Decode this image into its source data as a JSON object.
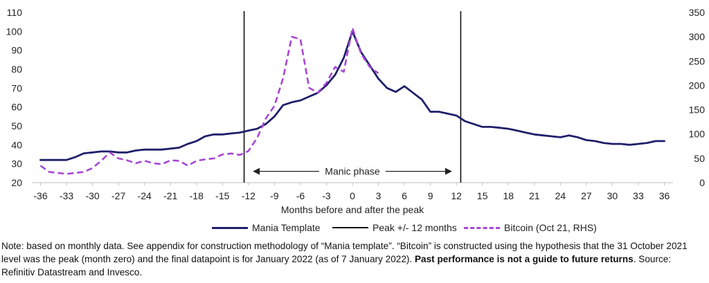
{
  "chart_data": {
    "type": "line",
    "xlabel": "Months before and after the peak",
    "x_ticks": [
      -36,
      -33,
      -30,
      -27,
      -24,
      -21,
      -18,
      -15,
      -12,
      -9,
      -6,
      -3,
      0,
      3,
      6,
      9,
      12,
      15,
      18,
      21,
      24,
      27,
      30,
      33,
      36
    ],
    "xlim": [
      -37,
      37
    ],
    "y_left": {
      "ticks": [
        20,
        30,
        40,
        50,
        60,
        70,
        80,
        90,
        100,
        110
      ],
      "lim": [
        20,
        110
      ]
    },
    "y_right": {
      "ticks": [
        0,
        50,
        100,
        150,
        200,
        250,
        300,
        350
      ],
      "lim": [
        0,
        350
      ]
    },
    "vertical_lines": [
      -12.5,
      12.5
    ],
    "annotation": {
      "text": "Manic phase",
      "from": -11.5,
      "to": 11.5,
      "y": 26
    },
    "series": [
      {
        "name": "Mania Template",
        "axis": "left",
        "color": "#1f1f6b",
        "style": "solid",
        "x": [
          -36,
          -35,
          -34,
          -33,
          -32,
          -31,
          -30,
          -29,
          -28,
          -27,
          -26,
          -25,
          -24,
          -23,
          -22,
          -21,
          -20,
          -19,
          -18,
          -17,
          -16,
          -15,
          -14,
          -13,
          -12,
          -11,
          -10,
          -9,
          -8,
          -7,
          -6,
          -5,
          -4,
          -3,
          -2,
          -1,
          0,
          1,
          2,
          3,
          4,
          5,
          6,
          7,
          8,
          9,
          10,
          11,
          12,
          13,
          14,
          15,
          16,
          17,
          18,
          19,
          20,
          21,
          22,
          23,
          24,
          25,
          26,
          27,
          28,
          29,
          30,
          31,
          32,
          33,
          34,
          35,
          36
        ],
        "values": [
          32,
          32,
          32,
          32,
          33.5,
          35.5,
          36,
          36.5,
          36.5,
          36,
          36,
          37,
          37.5,
          37.5,
          37.5,
          38,
          38.5,
          40.5,
          42,
          44.5,
          45.5,
          45.5,
          46,
          46.5,
          47.5,
          48.5,
          51,
          55,
          61,
          62.5,
          63.5,
          65.5,
          67.5,
          71.5,
          77,
          86,
          100,
          89,
          82,
          75,
          70,
          68,
          71,
          67.5,
          64,
          57.5,
          57.5,
          56.5,
          55.5,
          52.5,
          51,
          49.5,
          49.5,
          49,
          48.5,
          47.5,
          46.5,
          45.5,
          45,
          44.5,
          44,
          45,
          44,
          42.5,
          42,
          41,
          40.5,
          40.5,
          40,
          40.5,
          41,
          42,
          42
        ]
      },
      {
        "name": "Bitcoin (Oct 21, RHS)",
        "axis": "right",
        "color": "#a646d6",
        "style": "dashed",
        "x": [
          -36,
          -35,
          -34,
          -33,
          -32,
          -31,
          -30,
          -29,
          -28,
          -27,
          -26,
          -25,
          -24,
          -23,
          -22,
          -21,
          -20,
          -19,
          -18,
          -17,
          -16,
          -15,
          -14,
          -13,
          -12,
          -11,
          -10,
          -9,
          -8,
          -7,
          -6,
          -5,
          -4,
          -3,
          -2,
          -1,
          0,
          1,
          2,
          3
        ],
        "values": [
          35,
          22,
          20,
          18,
          20,
          22,
          30,
          45,
          62,
          50,
          46,
          40,
          45,
          40,
          38,
          46,
          45,
          35,
          45,
          48,
          50,
          58,
          60,
          57,
          65,
          92,
          132,
          158,
          215,
          300,
          295,
          195,
          185,
          205,
          238,
          228,
          318,
          265,
          238,
          225
        ]
      }
    ],
    "legend": [
      {
        "label": "Mania Template",
        "color": "#1f1f6b",
        "style": "solid"
      },
      {
        "label": "Peak +/- 12 months",
        "color": "#111111",
        "style": "solid"
      },
      {
        "label": "Bitcoin (Oct 21, RHS)",
        "color": "#a646d6",
        "style": "dashed"
      }
    ]
  },
  "note": {
    "text": "Note: based on monthly data. See appendix for construction methodology of “Mania template”. “Bitcoin” is constructed using the hypothesis that the 31 October 2021 level was the peak (month zero) and the final datapoint is for January 2022 (as of 7 January 2022). ",
    "bold": "Past performance is not a guide to future returns",
    "tail": ". Source: Refinitiv Datastream and Invesco."
  }
}
